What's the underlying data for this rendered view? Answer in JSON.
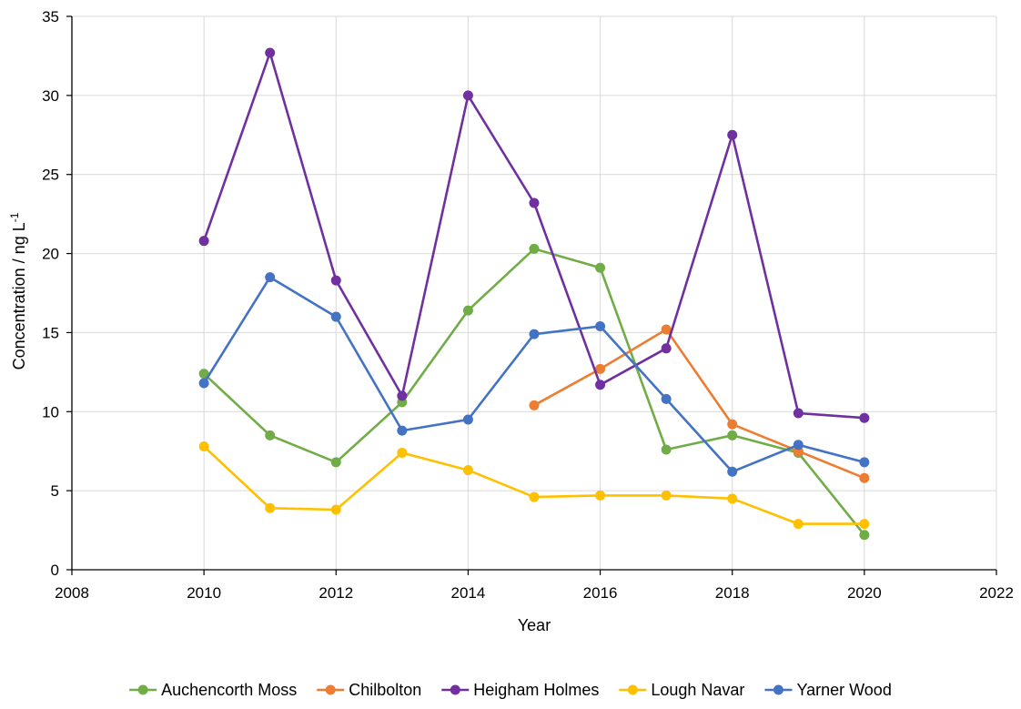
{
  "chart_data": {
    "type": "line",
    "xlabel": "Year",
    "ylabel": {
      "text": "Concentration / ng L",
      "sup": "-1"
    },
    "xlim": [
      2008,
      2022
    ],
    "ylim": [
      0,
      35
    ],
    "xticks": [
      2008,
      2010,
      2012,
      2014,
      2016,
      2018,
      2020,
      2022
    ],
    "yticks": [
      0,
      5,
      10,
      15,
      20,
      25,
      30,
      35
    ],
    "xtick_labels": [
      "2008",
      "2010",
      "2012",
      "2014",
      "2016",
      "2018",
      "2020",
      "2022"
    ],
    "ytick_labels": [
      "0",
      "5",
      "10",
      "15",
      "20",
      "25",
      "30",
      "35"
    ],
    "grid": true,
    "legend_position": "bottom",
    "series": [
      {
        "name": "Auchencorth Moss",
        "color": "#70AD47",
        "points": [
          [
            2010,
            12.4
          ],
          [
            2011,
            8.5
          ],
          [
            2012,
            6.8
          ],
          [
            2013,
            10.6
          ],
          [
            2014,
            16.4
          ],
          [
            2015,
            20.3
          ],
          [
            2016,
            19.1
          ],
          [
            2017,
            7.6
          ],
          [
            2018,
            8.5
          ],
          [
            2019,
            7.4
          ],
          [
            2020,
            2.2
          ]
        ]
      },
      {
        "name": "Chilbolton",
        "color": "#ED7D31",
        "points": [
          [
            2015,
            10.4
          ],
          [
            2016,
            12.7
          ],
          [
            2017,
            15.2
          ],
          [
            2018,
            9.2
          ],
          [
            2019,
            7.5
          ],
          [
            2020,
            5.8
          ]
        ]
      },
      {
        "name": "Heigham Holmes",
        "color": "#7030A0",
        "points": [
          [
            2010,
            20.8
          ],
          [
            2011,
            32.7
          ],
          [
            2012,
            18.3
          ],
          [
            2013,
            11.0
          ],
          [
            2014,
            30.0
          ],
          [
            2015,
            23.2
          ],
          [
            2016,
            11.7
          ],
          [
            2017,
            14.0
          ],
          [
            2018,
            27.5
          ],
          [
            2019,
            9.9
          ],
          [
            2020,
            9.6
          ]
        ]
      },
      {
        "name": "Lough Navar",
        "color": "#FFC000",
        "points": [
          [
            2010,
            7.8
          ],
          [
            2011,
            3.9
          ],
          [
            2012,
            3.8
          ],
          [
            2013,
            7.4
          ],
          [
            2014,
            6.3
          ],
          [
            2015,
            4.6
          ],
          [
            2016,
            4.7
          ],
          [
            2017,
            4.7
          ],
          [
            2018,
            4.5
          ],
          [
            2019,
            2.9
          ],
          [
            2020,
            2.9
          ]
        ]
      },
      {
        "name": "Yarner Wood",
        "color": "#4472C4",
        "points": [
          [
            2010,
            11.8
          ],
          [
            2011,
            18.5
          ],
          [
            2012,
            16.0
          ],
          [
            2013,
            8.8
          ],
          [
            2014,
            9.5
          ],
          [
            2015,
            14.9
          ],
          [
            2016,
            15.4
          ],
          [
            2017,
            10.8
          ],
          [
            2018,
            6.2
          ],
          [
            2019,
            7.9
          ],
          [
            2020,
            6.8
          ]
        ]
      }
    ]
  }
}
